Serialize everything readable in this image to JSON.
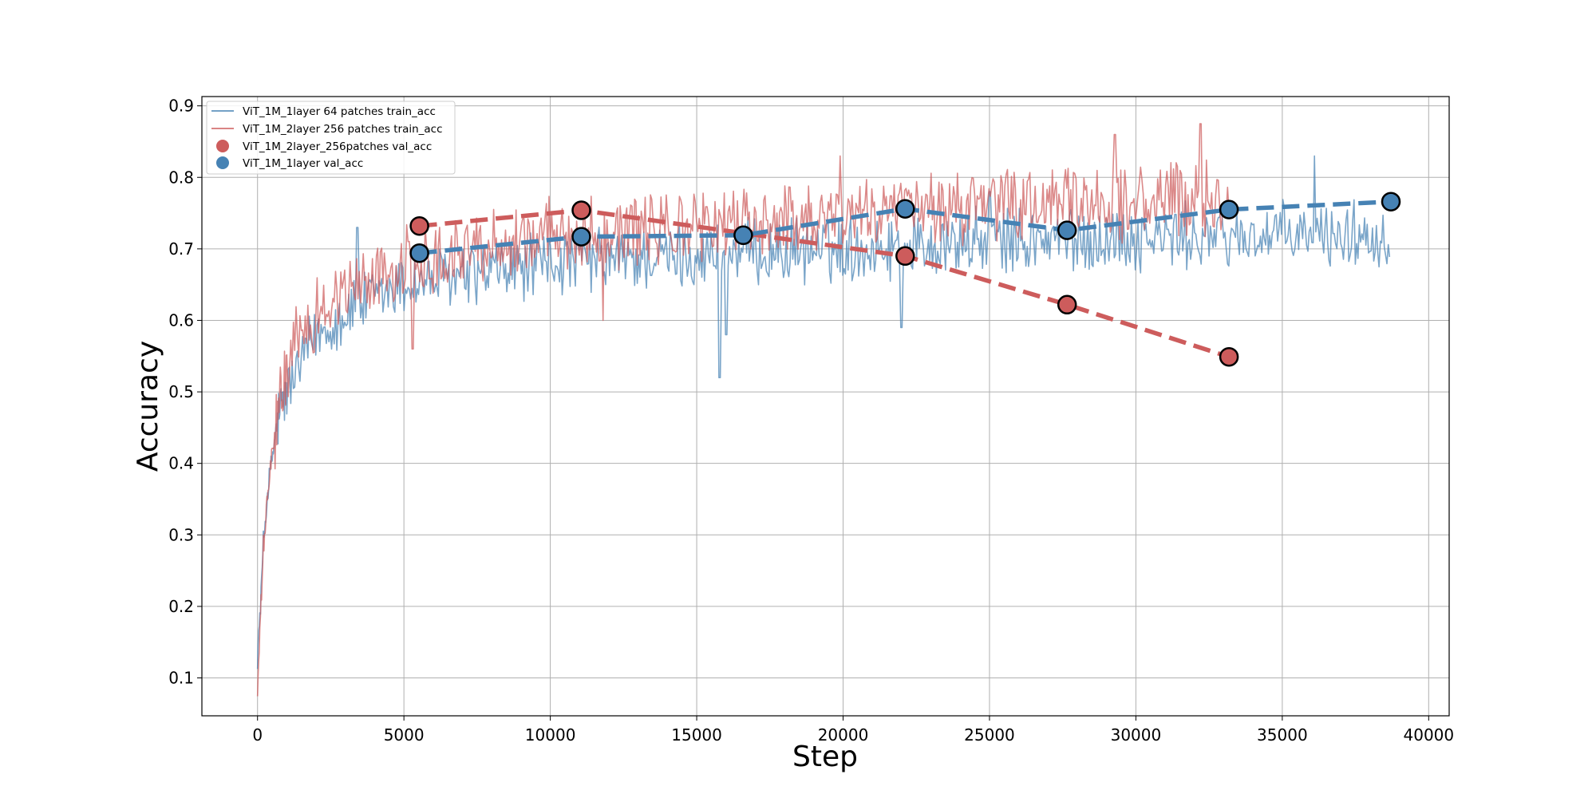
{
  "chart_data": {
    "type": "line",
    "title": "",
    "xlabel": "Step",
    "ylabel": "Accuracy",
    "xlim": [
      -1900,
      40700
    ],
    "ylim": [
      0.047,
      0.913
    ],
    "xticks": [
      0,
      5000,
      10000,
      15000,
      20000,
      25000,
      30000,
      35000,
      40000
    ],
    "yticks": [
      0.1,
      0.2,
      0.3,
      0.4,
      0.5,
      0.6,
      0.7,
      0.8,
      0.9
    ],
    "grid": true,
    "legend_position": "upper left",
    "colors": {
      "blue": "#4682b4",
      "red": "#cd5c5c"
    },
    "series": [
      {
        "name": "ViT_1M_1layer 64 patches train_acc",
        "kind": "line",
        "color": "#4682b4",
        "x_max": 38700,
        "trend": [
          [
            0,
            0.13
          ],
          [
            100,
            0.2
          ],
          [
            200,
            0.29
          ],
          [
            400,
            0.38
          ],
          [
            700,
            0.46
          ],
          [
            1000,
            0.5
          ],
          [
            1500,
            0.54
          ],
          [
            2000,
            0.58
          ],
          [
            3000,
            0.61
          ],
          [
            4000,
            0.63
          ],
          [
            5000,
            0.65
          ],
          [
            7000,
            0.66
          ],
          [
            10000,
            0.68
          ],
          [
            15000,
            0.69
          ],
          [
            20000,
            0.7
          ],
          [
            25000,
            0.71
          ],
          [
            30000,
            0.715
          ],
          [
            38700,
            0.72
          ]
        ],
        "noise": 0.04,
        "dips": [
          [
            15800,
            0.52
          ],
          [
            16000,
            0.58
          ],
          [
            22000,
            0.59
          ]
        ],
        "peaks": [
          [
            3400,
            0.73
          ],
          [
            25000,
            0.78
          ],
          [
            36100,
            0.83
          ]
        ]
      },
      {
        "name": "ViT_1M_2layer 256 patches train_acc",
        "kind": "line",
        "color": "#cd5c5c",
        "x_max": 33200,
        "trend": [
          [
            0,
            0.08
          ],
          [
            100,
            0.18
          ],
          [
            200,
            0.28
          ],
          [
            400,
            0.38
          ],
          [
            700,
            0.47
          ],
          [
            1000,
            0.53
          ],
          [
            1500,
            0.58
          ],
          [
            2000,
            0.61
          ],
          [
            3000,
            0.64
          ],
          [
            4000,
            0.66
          ],
          [
            5000,
            0.68
          ],
          [
            7000,
            0.7
          ],
          [
            10000,
            0.72
          ],
          [
            15000,
            0.73
          ],
          [
            20000,
            0.75
          ],
          [
            25000,
            0.76
          ],
          [
            30000,
            0.765
          ],
          [
            33200,
            0.77
          ]
        ],
        "noise": 0.045,
        "dips": [
          [
            5300,
            0.56
          ],
          [
            11800,
            0.6
          ]
        ],
        "peaks": [
          [
            32200,
            0.875
          ],
          [
            29300,
            0.86
          ],
          [
            19900,
            0.83
          ]
        ]
      },
      {
        "name": "ViT_1M_2layer_256patches val_acc",
        "kind": "dashed-markers",
        "color": "#cd5c5c",
        "x": [
          5530,
          11060,
          22120,
          27650,
          33180
        ],
        "y": [
          0.732,
          0.754,
          0.69,
          0.622,
          0.549
        ]
      },
      {
        "name": "ViT_1M_1layer val_acc",
        "kind": "dashed-markers",
        "color": "#4682b4",
        "x": [
          5530,
          11060,
          16590,
          22120,
          27650,
          33180,
          38710
        ],
        "y": [
          0.694,
          0.717,
          0.719,
          0.756,
          0.726,
          0.755,
          0.766
        ]
      }
    ]
  }
}
